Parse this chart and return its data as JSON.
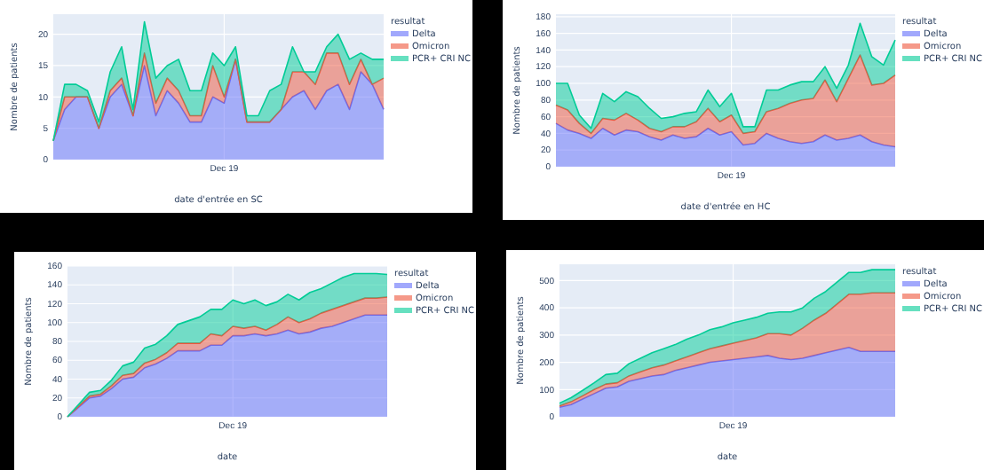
{
  "chart_data": [
    {
      "type": "area",
      "stacked": true,
      "xlabel": "date d'entrée en SC",
      "ylabel": "Nombre de patients",
      "legend_title": "resultat",
      "legend": "right",
      "grid": true,
      "categories": [
        null,
        null,
        null,
        null,
        null,
        null,
        null,
        null,
        null,
        null,
        null,
        null,
        null,
        null,
        null,
        "Dec 19",
        null,
        null,
        null,
        null,
        null,
        null,
        null,
        null,
        null,
        null,
        null,
        null,
        null,
        null
      ],
      "ylim": [
        0,
        23.2
      ],
      "yticks": [
        0,
        5,
        10,
        15,
        20
      ],
      "series": [
        {
          "name": "Delta",
          "color": "#636efa",
          "values": [
            3,
            8,
            10,
            10,
            5,
            10,
            12,
            7,
            15,
            7,
            11,
            9,
            6,
            6,
            10,
            9,
            16,
            6,
            6,
            6,
            8,
            10,
            11,
            8,
            11,
            12,
            8,
            14,
            12,
            8
          ]
        },
        {
          "name": "Omicron",
          "color": "#ef553b",
          "values": [
            0,
            2,
            0,
            0,
            0,
            1,
            1,
            0,
            2,
            2,
            2,
            2,
            1,
            1,
            5,
            1,
            0,
            0,
            0,
            0,
            0,
            4,
            3,
            4,
            6,
            5,
            4,
            2,
            0,
            5
          ]
        },
        {
          "name": "PCR+ CRI NC",
          "color": "#00cc96",
          "values": [
            0,
            2,
            2,
            1,
            1,
            3,
            5,
            1,
            5,
            4,
            2,
            5,
            4,
            4,
            2,
            5,
            2,
            1,
            1,
            5,
            4,
            4,
            0,
            2,
            1,
            3,
            4,
            1,
            4,
            3
          ]
        }
      ]
    },
    {
      "type": "area",
      "stacked": true,
      "xlabel": "date d'entrée en HC",
      "ylabel": "Nombre de patients",
      "legend_title": "resultat",
      "legend": "right",
      "grid": true,
      "categories": [
        null,
        null,
        null,
        null,
        null,
        null,
        null,
        null,
        null,
        null,
        null,
        null,
        null,
        null,
        null,
        "Dec 19",
        null,
        null,
        null,
        null,
        null,
        null,
        null,
        null,
        null,
        null,
        null,
        null,
        null,
        null
      ],
      "ylim": [
        0,
        183
      ],
      "yticks": [
        0,
        20,
        40,
        60,
        80,
        100,
        120,
        140,
        160,
        180
      ],
      "series": [
        {
          "name": "Delta",
          "color": "#636efa",
          "values": [
            52,
            44,
            40,
            34,
            46,
            38,
            44,
            42,
            36,
            32,
            38,
            34,
            36,
            46,
            38,
            42,
            26,
            28,
            40,
            34,
            30,
            28,
            30,
            38,
            32,
            34,
            38,
            30,
            26,
            24
          ]
        },
        {
          "name": "Omicron",
          "color": "#ef553b",
          "values": [
            22,
            24,
            12,
            6,
            12,
            18,
            20,
            14,
            10,
            10,
            10,
            14,
            18,
            24,
            16,
            20,
            14,
            14,
            26,
            36,
            46,
            52,
            52,
            66,
            46,
            72,
            96,
            68,
            74,
            86
          ]
        },
        {
          "name": "PCR+ CRI NC",
          "color": "#00cc96",
          "values": [
            26,
            32,
            10,
            6,
            30,
            22,
            26,
            28,
            24,
            16,
            12,
            16,
            12,
            22,
            18,
            26,
            8,
            6,
            26,
            22,
            22,
            22,
            20,
            16,
            16,
            16,
            38,
            34,
            22,
            42
          ]
        }
      ]
    },
    {
      "type": "area",
      "stacked": true,
      "xlabel": "date",
      "ylabel": "Nombre de patients",
      "legend_title": "resultat",
      "legend": "right",
      "grid": true,
      "categories": [
        null,
        null,
        null,
        null,
        null,
        null,
        null,
        null,
        null,
        null,
        null,
        null,
        null,
        null,
        null,
        "Dec 19",
        null,
        null,
        null,
        null,
        null,
        null,
        null,
        null,
        null,
        null,
        null,
        null,
        null,
        null
      ],
      "ylim": [
        0,
        160
      ],
      "yticks": [
        0,
        20,
        40,
        60,
        80,
        100,
        120,
        140,
        160
      ],
      "series": [
        {
          "name": "Delta",
          "color": "#636efa",
          "values": [
            0,
            10,
            20,
            22,
            30,
            40,
            42,
            52,
            56,
            62,
            70,
            70,
            70,
            76,
            76,
            86,
            86,
            88,
            86,
            88,
            92,
            88,
            90,
            94,
            96,
            100,
            104,
            108,
            108,
            108
          ]
        },
        {
          "name": "Omicron",
          "color": "#ef553b",
          "values": [
            0,
            1,
            2,
            2,
            3,
            4,
            4,
            5,
            5,
            6,
            8,
            8,
            8,
            12,
            10,
            10,
            8,
            8,
            6,
            10,
            14,
            12,
            14,
            16,
            18,
            18,
            18,
            18,
            18,
            19
          ]
        },
        {
          "name": "PCR+ CRI NC",
          "color": "#00cc96",
          "values": [
            0,
            2,
            4,
            4,
            6,
            10,
            12,
            16,
            16,
            18,
            20,
            24,
            28,
            26,
            28,
            28,
            26,
            28,
            26,
            24,
            24,
            24,
            28,
            26,
            28,
            30,
            30,
            26,
            26,
            24
          ]
        }
      ]
    },
    {
      "type": "area",
      "stacked": true,
      "xlabel": "date",
      "ylabel": "Nombre de patients",
      "legend_title": "resultat",
      "legend": "right",
      "grid": true,
      "categories": [
        null,
        null,
        null,
        null,
        null,
        null,
        null,
        null,
        null,
        null,
        null,
        null,
        null,
        null,
        null,
        "Dec 19",
        null,
        null,
        null,
        null,
        null,
        null,
        null,
        null,
        null,
        null,
        null,
        null,
        null,
        null
      ],
      "ylim": [
        0,
        560
      ],
      "yticks": [
        0,
        100,
        200,
        300,
        400,
        500
      ],
      "series": [
        {
          "name": "Delta",
          "color": "#636efa",
          "values": [
            35,
            45,
            65,
            85,
            105,
            110,
            130,
            140,
            150,
            155,
            170,
            180,
            190,
            200,
            205,
            210,
            215,
            220,
            225,
            215,
            210,
            215,
            225,
            235,
            245,
            255,
            240,
            240,
            240,
            240
          ]
        },
        {
          "name": "Omicron",
          "color": "#ef553b",
          "values": [
            5,
            10,
            12,
            15,
            15,
            15,
            20,
            25,
            30,
            35,
            35,
            40,
            45,
            50,
            55,
            60,
            65,
            70,
            80,
            90,
            90,
            110,
            130,
            145,
            170,
            195,
            210,
            215,
            215,
            215
          ]
        },
        {
          "name": "PCR+ CRI NC",
          "color": "#00cc96",
          "values": [
            10,
            15,
            20,
            25,
            35,
            35,
            45,
            50,
            55,
            60,
            60,
            65,
            65,
            70,
            70,
            75,
            75,
            75,
            75,
            80,
            85,
            75,
            80,
            80,
            80,
            80,
            80,
            85,
            85,
            85
          ]
        }
      ]
    }
  ]
}
